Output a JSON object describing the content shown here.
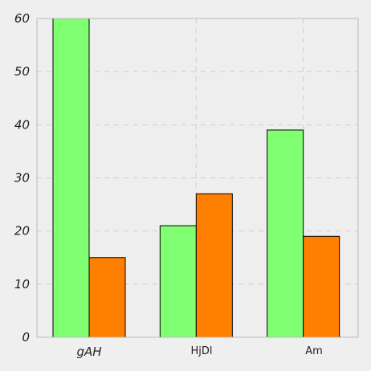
{
  "chart_data": {
    "type": "bar",
    "categories": [
      "gAH",
      "HjDl",
      "Am"
    ],
    "series": [
      {
        "values": [
          60,
          21,
          39
        ],
        "color": "#80ff72"
      },
      {
        "values": [
          15,
          27,
          19
        ],
        "color": "#ff7f00"
      }
    ],
    "title": "",
    "xlabel": "",
    "ylabel": "",
    "ylim": [
      0,
      60
    ],
    "yticks": [
      0,
      10,
      20,
      30,
      40,
      50,
      60
    ],
    "grid": true,
    "legend": "none",
    "background": "#efefef",
    "plot_background": "#eeeeee",
    "grid_color": "#cccccc",
    "bar_edge_color": "#000000"
  }
}
